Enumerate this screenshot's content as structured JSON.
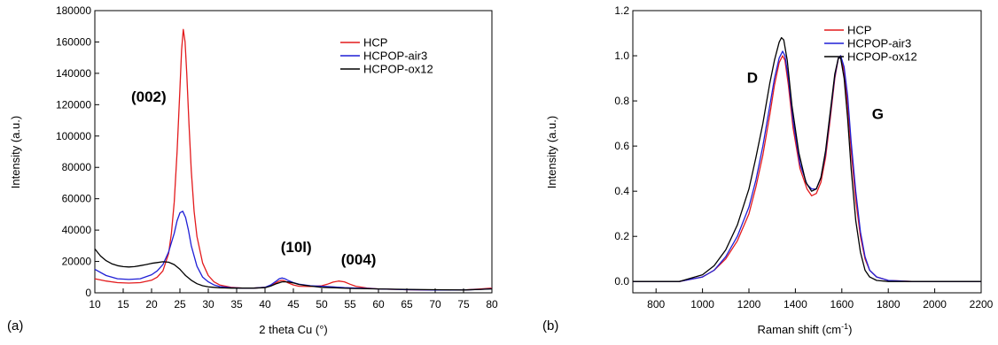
{
  "chart_data": [
    {
      "type": "line",
      "panel_label": "(a)",
      "xlabel": "2 theta Cu (°)",
      "ylabel": "Intensity (a.u.)",
      "xlim": [
        10,
        80
      ],
      "ylim": [
        0,
        180000
      ],
      "xticks": [
        10,
        15,
        20,
        25,
        30,
        35,
        40,
        45,
        50,
        55,
        60,
        65,
        70,
        75,
        80
      ],
      "yticks": [
        0,
        20000,
        40000,
        60000,
        80000,
        100000,
        120000,
        140000,
        160000,
        180000
      ],
      "grid": false,
      "legend_position": "top-right",
      "annotations": [
        {
          "text": "(002)",
          "x": 19.5,
          "y": 122000
        },
        {
          "text": "(10l)",
          "x": 45.5,
          "y": 26000
        },
        {
          "text": "(004)",
          "x": 56.5,
          "y": 18000
        }
      ],
      "series": [
        {
          "name": "HCP",
          "color": "#e31a1c",
          "x": [
            10,
            12,
            14,
            16,
            18,
            20,
            21,
            22,
            23,
            23.5,
            24,
            24.5,
            25,
            25.3,
            25.6,
            25.9,
            26.2,
            26.6,
            27,
            27.5,
            28,
            29,
            30,
            31,
            32,
            34,
            36,
            38,
            40,
            41,
            42,
            42.5,
            43,
            43.5,
            44,
            45,
            46,
            48,
            50,
            51,
            52,
            53,
            54,
            55,
            56,
            58,
            60,
            65,
            70,
            75,
            78,
            80
          ],
          "y": [
            9000,
            7500,
            6500,
            6200,
            6500,
            8000,
            10000,
            14000,
            25000,
            38000,
            58000,
            90000,
            130000,
            155000,
            168000,
            160000,
            140000,
            108000,
            78000,
            52000,
            36000,
            19000,
            11000,
            7000,
            5000,
            3500,
            3000,
            3000,
            3500,
            4500,
            6500,
            7500,
            8000,
            7500,
            6500,
            5000,
            4200,
            4000,
            4500,
            5500,
            6800,
            7500,
            7000,
            5500,
            4200,
            3000,
            2500,
            2000,
            1800,
            1800,
            2500,
            3000
          ]
        },
        {
          "name": "HCPOP-air3",
          "color": "#1f1fd6",
          "x": [
            10,
            12,
            14,
            16,
            18,
            20,
            21,
            22,
            23,
            24,
            24.5,
            25,
            25.5,
            26,
            26.5,
            27,
            28,
            29,
            30,
            31,
            32,
            34,
            36,
            38,
            40,
            41,
            42,
            42.5,
            43,
            43.5,
            44,
            45,
            46,
            48,
            50,
            52,
            54,
            56,
            58,
            60,
            65,
            70,
            75,
            78,
            80
          ],
          "y": [
            15000,
            11000,
            9000,
            8500,
            9000,
            11500,
            14000,
            18000,
            26000,
            38000,
            46000,
            51000,
            52000,
            48000,
            40000,
            30000,
            17000,
            10000,
            7000,
            5000,
            4000,
            3200,
            3000,
            3000,
            3500,
            5000,
            7500,
            9000,
            9500,
            9000,
            8000,
            6500,
            5500,
            4500,
            4200,
            3800,
            3300,
            3000,
            2800,
            2500,
            2000,
            1800,
            1800,
            2200,
            2600
          ]
        },
        {
          "name": "HCPOP-ox12",
          "color": "#000000",
          "x": [
            10,
            11,
            12,
            13,
            14,
            15,
            16,
            17,
            18,
            19,
            20,
            21,
            22,
            23,
            24,
            25,
            25.5,
            26,
            27,
            28,
            29,
            30,
            32,
            34,
            36,
            38,
            40,
            41,
            42,
            43,
            44,
            45,
            46,
            48,
            50,
            55,
            60,
            65,
            70,
            75,
            78,
            80
          ],
          "y": [
            28000,
            23500,
            20500,
            18500,
            17300,
            16700,
            16500,
            16700,
            17300,
            18000,
            18800,
            19300,
            19800,
            19500,
            18000,
            15000,
            13000,
            11000,
            8000,
            5800,
            4500,
            3800,
            3200,
            3000,
            3000,
            3000,
            3300,
            4300,
            5800,
            7000,
            7000,
            6300,
            5300,
            4300,
            3500,
            2800,
            2500,
            2200,
            2000,
            1800,
            2200,
            2500
          ]
        }
      ]
    },
    {
      "type": "line",
      "panel_label": "(b)",
      "xlabel": "Raman shift (cm",
      "xlabel_sup": "-1",
      "xlabel_end": ")",
      "ylabel": "Intensity (a.u.)",
      "xlim": [
        700,
        2200
      ],
      "ylim": [
        -0.05,
        1.2
      ],
      "xticks": [
        800,
        1000,
        1200,
        1400,
        1600,
        1800,
        2000,
        2200
      ],
      "yticks": [
        0.0,
        0.2,
        0.4,
        0.6,
        0.8,
        1.0,
        1.2
      ],
      "ytick_labels": [
        "0.0",
        "0.2",
        "0.4",
        "0.6",
        "0.8",
        "1.0",
        "1.2"
      ],
      "grid": false,
      "legend_position": "top-right",
      "annotations": [
        {
          "text": "D",
          "x": 1215,
          "y": 0.88
        },
        {
          "text": "G",
          "x": 1755,
          "y": 0.72
        }
      ],
      "series": [
        {
          "name": "HCP",
          "color": "#e31a1c",
          "x": [
            700,
            800,
            900,
            1000,
            1050,
            1100,
            1150,
            1200,
            1230,
            1260,
            1290,
            1310,
            1330,
            1345,
            1355,
            1370,
            1390,
            1420,
            1450,
            1470,
            1490,
            1510,
            1530,
            1550,
            1570,
            1585,
            1595,
            1610,
            1625,
            1640,
            1660,
            1680,
            1700,
            1720,
            1750,
            1800,
            1900,
            2000,
            2100,
            2200
          ],
          "y": [
            0.0,
            0.0,
            0.0,
            0.02,
            0.05,
            0.1,
            0.18,
            0.3,
            0.42,
            0.56,
            0.74,
            0.87,
            0.97,
            1.0,
            0.98,
            0.87,
            0.68,
            0.5,
            0.41,
            0.38,
            0.39,
            0.44,
            0.55,
            0.72,
            0.9,
            0.99,
            1.0,
            0.93,
            0.78,
            0.58,
            0.36,
            0.2,
            0.1,
            0.05,
            0.02,
            0.005,
            0.0,
            0.0,
            0.0,
            0.0
          ]
        },
        {
          "name": "HCPOP-air3",
          "color": "#1f1fd6",
          "x": [
            700,
            800,
            900,
            1000,
            1050,
            1100,
            1150,
            1200,
            1230,
            1260,
            1290,
            1310,
            1330,
            1345,
            1355,
            1370,
            1390,
            1420,
            1450,
            1470,
            1490,
            1510,
            1530,
            1550,
            1570,
            1585,
            1595,
            1610,
            1625,
            1640,
            1660,
            1680,
            1700,
            1720,
            1750,
            1800,
            1900,
            2000,
            2100,
            2200
          ],
          "y": [
            0.0,
            0.0,
            0.0,
            0.02,
            0.05,
            0.11,
            0.2,
            0.33,
            0.45,
            0.6,
            0.78,
            0.9,
            0.99,
            1.02,
            1.0,
            0.9,
            0.71,
            0.52,
            0.43,
            0.41,
            0.41,
            0.46,
            0.57,
            0.74,
            0.91,
            0.99,
            1.0,
            0.95,
            0.82,
            0.62,
            0.4,
            0.22,
            0.11,
            0.05,
            0.02,
            0.005,
            0.0,
            0.0,
            0.0,
            0.0
          ]
        },
        {
          "name": "HCPOP-ox12",
          "color": "#000000",
          "x": [
            700,
            800,
            900,
            1000,
            1050,
            1100,
            1150,
            1200,
            1230,
            1260,
            1290,
            1310,
            1330,
            1340,
            1350,
            1365,
            1385,
            1415,
            1445,
            1470,
            1490,
            1510,
            1530,
            1550,
            1570,
            1585,
            1595,
            1610,
            1625,
            1640,
            1660,
            1680,
            1700,
            1720,
            1750,
            1800,
            1900,
            2000,
            2100,
            2200
          ],
          "y": [
            0.0,
            0.0,
            0.0,
            0.03,
            0.07,
            0.14,
            0.25,
            0.41,
            0.55,
            0.7,
            0.88,
            0.98,
            1.06,
            1.08,
            1.07,
            0.98,
            0.78,
            0.57,
            0.44,
            0.4,
            0.41,
            0.46,
            0.58,
            0.75,
            0.92,
            0.99,
            0.99,
            0.9,
            0.72,
            0.5,
            0.27,
            0.13,
            0.05,
            0.02,
            0.005,
            0.0,
            0.0,
            0.0,
            0.0,
            0.0
          ]
        }
      ]
    }
  ]
}
